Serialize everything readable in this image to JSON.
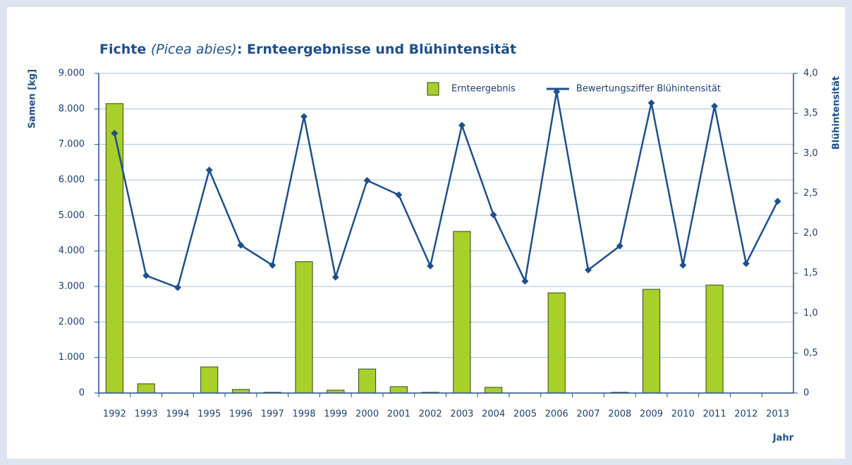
{
  "chart_data": {
    "type": "bar_line",
    "title": [
      "Fichte ",
      "(Picea abies)",
      ": Ernteergebnisse und Blühintensität"
    ],
    "y_label": "Samen [kg]",
    "y2_label": "Blühintensität",
    "x_label": "Jahr",
    "categories": [
      "1992",
      "1993",
      "1994",
      "1995",
      "1996",
      "1997",
      "1998",
      "1999",
      "2000",
      "2001",
      "2002",
      "2003",
      "2004",
      "2005",
      "2006",
      "2007",
      "2008",
      "2009",
      "2010",
      "2011",
      "2012",
      "2013"
    ],
    "series": [
      {
        "name": "Ernteergebnis",
        "type": "bar",
        "color": "#a8cf2a",
        "values": [
          8150,
          260,
          0,
          735,
          100,
          20,
          3700,
          80,
          675,
          180,
          20,
          4550,
          160,
          0,
          2820,
          0,
          20,
          2920,
          0,
          3040,
          0,
          0
        ]
      },
      {
        "name": "Bewertungsziffer Blühintensität",
        "type": "line",
        "axis": "y2",
        "color": "#1d4f8c",
        "values": [
          3.25,
          1.47,
          1.32,
          2.79,
          1.85,
          1.6,
          3.46,
          1.45,
          2.66,
          2.48,
          1.59,
          3.35,
          2.23,
          1.4,
          3.77,
          1.54,
          1.84,
          3.63,
          1.6,
          3.59,
          1.62,
          2.4
        ]
      }
    ],
    "ylim": [
      0,
      9000
    ],
    "yticks": [
      {
        "value": 0,
        "label": "0"
      },
      {
        "value": 1000,
        "label": "1.000"
      },
      {
        "value": 2000,
        "label": "2.000"
      },
      {
        "value": 3000,
        "label": "3.000"
      },
      {
        "value": 4000,
        "label": "4.000"
      },
      {
        "value": 5000,
        "label": "5.000"
      },
      {
        "value": 6000,
        "label": "6.000"
      },
      {
        "value": 7000,
        "label": "7.000"
      },
      {
        "value": 8000,
        "label": "8.000"
      },
      {
        "value": 9000,
        "label": "9.000"
      }
    ],
    "y2lim": [
      0,
      4
    ],
    "y2ticks": [
      {
        "value": 0,
        "label": "0"
      },
      {
        "value": 0.5,
        "label": "0,5"
      },
      {
        "value": 1,
        "label": "1,0"
      },
      {
        "value": 1.5,
        "label": "1,5"
      },
      {
        "value": 2,
        "label": "2,0"
      },
      {
        "value": 2.5,
        "label": "2,5"
      },
      {
        "value": 3,
        "label": "3,0"
      },
      {
        "value": 3.5,
        "label": "3,5"
      },
      {
        "value": 4,
        "label": "4,0"
      }
    ],
    "grid": true,
    "legend": "upper right"
  }
}
